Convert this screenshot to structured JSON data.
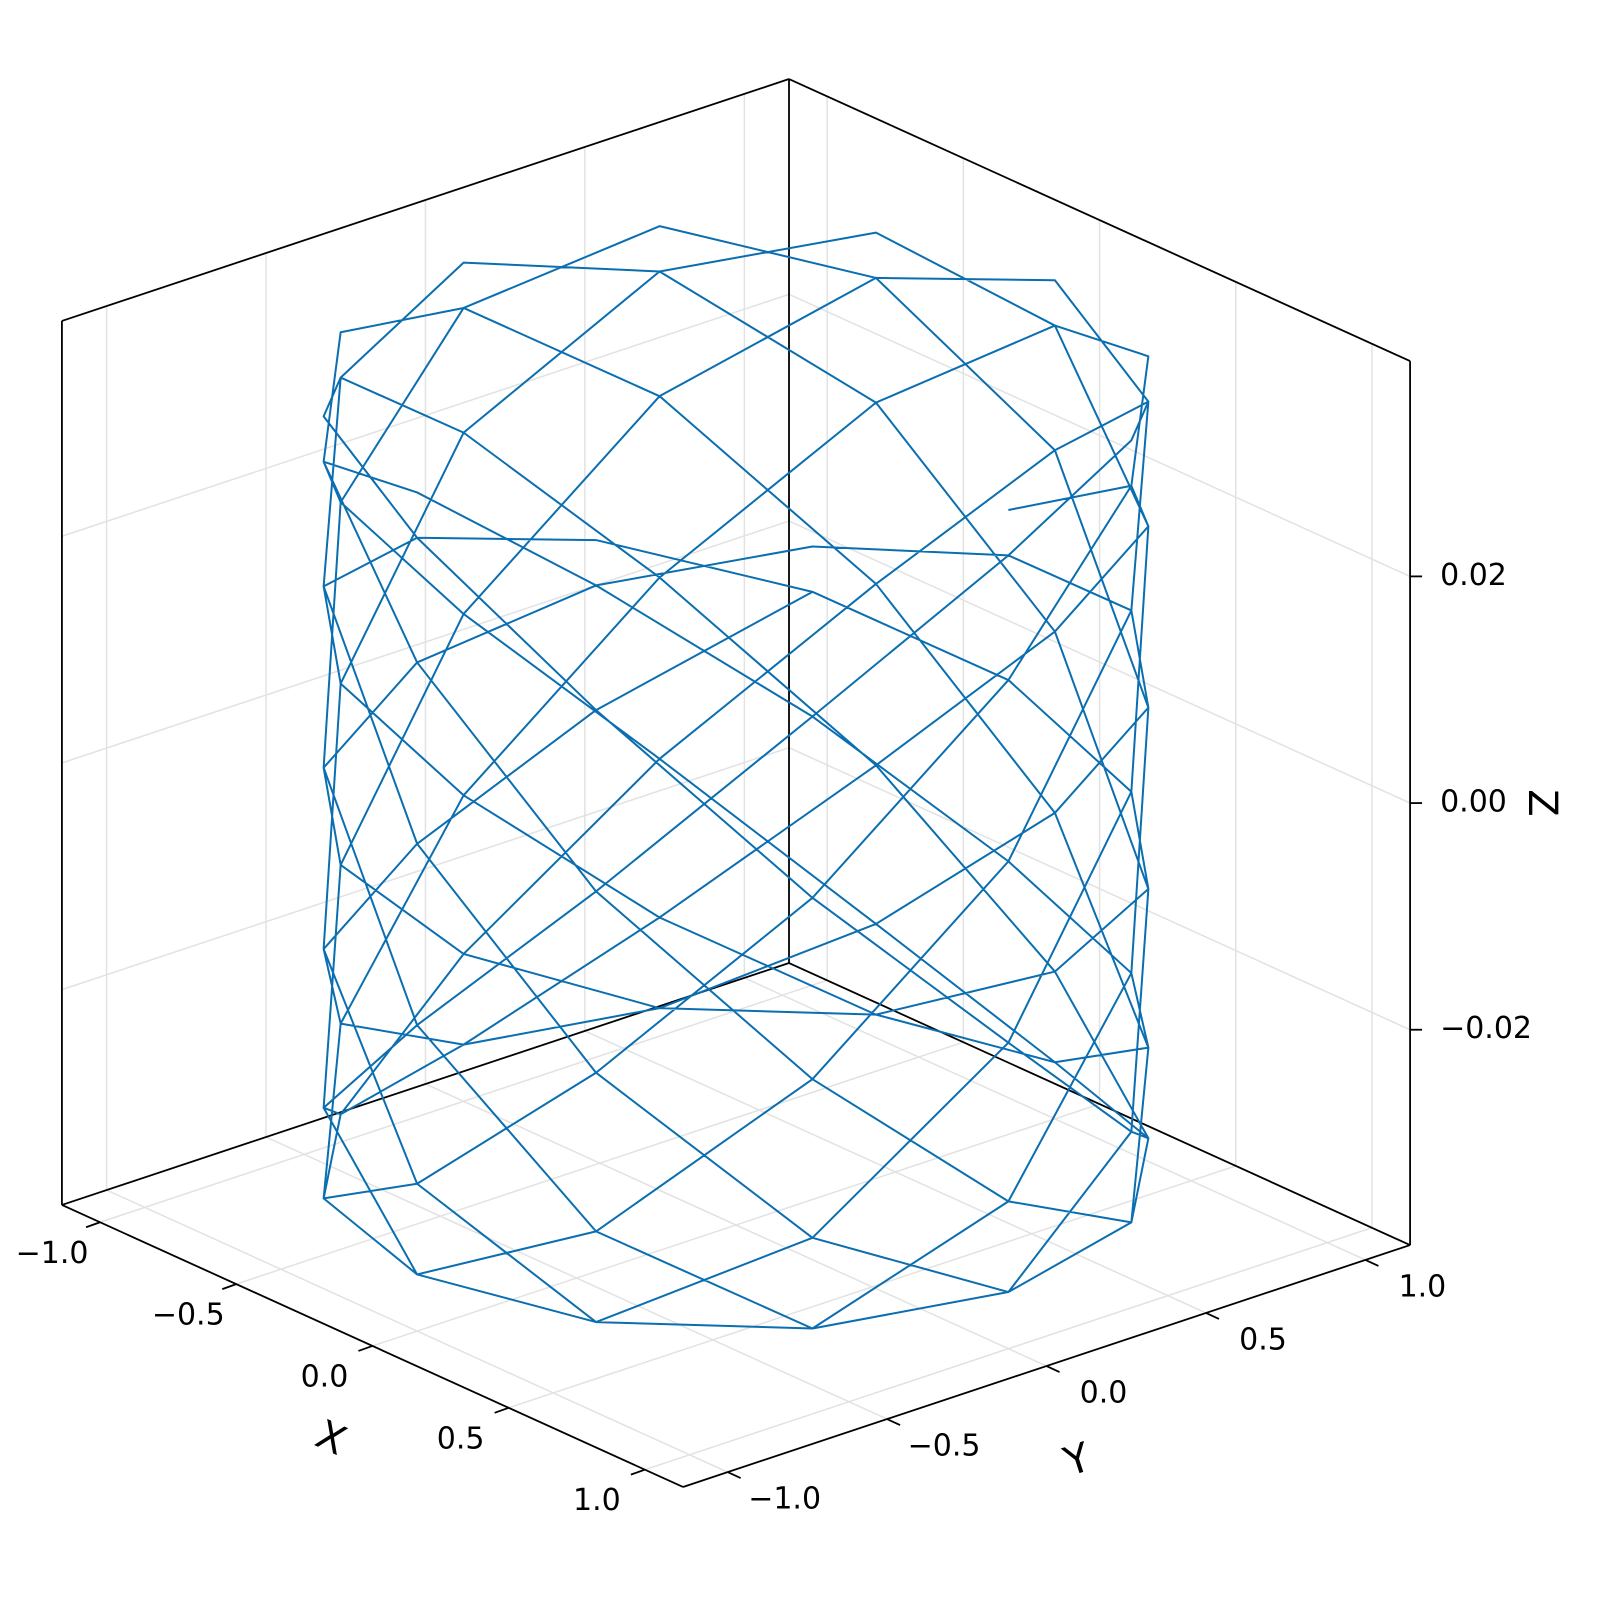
{
  "chart_data": {
    "type": "line3d",
    "xlabel": "X",
    "ylabel": "Y",
    "zlabel": "Z",
    "xlim": [
      -1.14,
      1.14
    ],
    "ylim": [
      -1.14,
      1.14
    ],
    "zlim": [
      -0.039,
      0.039
    ],
    "xticks": [
      {
        "value": -1.0,
        "label": "−1.0"
      },
      {
        "value": -0.5,
        "label": "−0.5"
      },
      {
        "value": 0,
        "label": "0.0"
      },
      {
        "value": 0.5,
        "label": "0.5"
      },
      {
        "value": 1.0,
        "label": "1.0"
      }
    ],
    "yticks": [
      {
        "value": -1.0,
        "label": "−1.0"
      },
      {
        "value": -0.5,
        "label": "−0.5"
      },
      {
        "value": 0,
        "label": "0.0"
      },
      {
        "value": 0.5,
        "label": "0.5"
      },
      {
        "value": 1.0,
        "label": "1.0"
      }
    ],
    "zticks": [
      {
        "value": -0.02,
        "label": "−0.02"
      },
      {
        "value": 0,
        "label": "0.00"
      },
      {
        "value": 0.02,
        "label": "0.02"
      }
    ],
    "grid": true,
    "series": [
      {
        "color": "#0a6eb0",
        "x": [
          1,
          0.866,
          0.5,
          0,
          -0.5,
          -0.866,
          -1,
          -0.866,
          -0.5,
          0,
          0.5,
          0.866,
          1,
          0.866,
          0.5,
          0,
          -0.5,
          -0.866,
          -1,
          -0.866,
          -0.5,
          0,
          0.5,
          0.866,
          1,
          0.866,
          0.5,
          0,
          -0.5,
          -0.866,
          -1,
          -0.866,
          -0.5,
          0,
          0.5,
          0.866,
          1,
          0.866,
          0.5,
          0,
          -0.5,
          -0.866,
          -1,
          -0.866,
          -0.5,
          0,
          0.5,
          0.866,
          1,
          0.866,
          0.5,
          0,
          -0.5,
          -0.866,
          -1,
          -0.866,
          -0.5,
          0,
          0.5,
          0.866,
          1,
          0.866,
          0.5,
          0,
          -0.5,
          -0.866,
          -1,
          -0.866,
          -0.5,
          0,
          0.5,
          0.866,
          1,
          0.866,
          0.5,
          0,
          -0.5,
          -0.866,
          -1,
          -0.866,
          -0.5,
          0,
          0.5,
          0.866,
          1,
          0.866,
          0.5,
          0,
          -0.5,
          -0.866,
          -1,
          -0.866,
          -0.5,
          0,
          0.5,
          0.866,
          1,
          0.866,
          0.5,
          0,
          -0.5,
          -0.866,
          -1,
          -0.866,
          -0.5,
          0,
          0.5,
          0.866,
          1,
          0.866,
          0.5,
          0,
          -0.5,
          -0.866,
          -1,
          -0.866,
          -0.5,
          0,
          0.5,
          0.866,
          1,
          0.866,
          0.5,
          0,
          -0.5,
          -0.866,
          -1,
          -0.866,
          -0.5,
          0,
          0.5,
          0.866,
          1,
          0.866,
          0.5,
          0,
          -0.5,
          -0.866,
          -1,
          -0.866,
          -0.5,
          0,
          0.5,
          0.866,
          1,
          0.866,
          0.5,
          0,
          -0.5,
          -0.866,
          -1,
          -0.866,
          -0.5,
          0,
          0.5,
          0.866
        ],
        "y": [
          0,
          0.5,
          0.866,
          1,
          0.866,
          0.5,
          0,
          -0.5,
          -0.866,
          -1,
          -0.866,
          -0.5,
          0,
          0.5,
          0.866,
          1,
          0.866,
          0.5,
          0,
          -0.5,
          -0.866,
          -1,
          -0.866,
          -0.5,
          0,
          0.5,
          0.866,
          1,
          0.866,
          0.5,
          0,
          -0.5,
          -0.866,
          -1,
          -0.866,
          -0.5,
          0,
          0.5,
          0.866,
          1,
          0.866,
          0.5,
          0,
          -0.5,
          -0.866,
          -1,
          -0.866,
          -0.5,
          0,
          0.5,
          0.866,
          1,
          0.866,
          0.5,
          0,
          -0.5,
          -0.866,
          -1,
          -0.866,
          -0.5,
          0,
          0.5,
          0.866,
          1,
          0.866,
          0.5,
          0,
          -0.5,
          -0.866,
          -1,
          -0.866,
          -0.5,
          0,
          0.5,
          0.866,
          1,
          0.866,
          0.5,
          0,
          -0.5,
          -0.866,
          -1,
          -0.866,
          -0.5,
          0,
          0.5,
          0.866,
          1,
          0.866,
          0.5,
          0,
          -0.5,
          -0.866,
          -1,
          -0.866,
          -0.5,
          0,
          0.5,
          0.866,
          1,
          0.866,
          0.5,
          0,
          -0.5,
          -0.866,
          -1,
          -0.866,
          -0.5,
          0,
          0.5,
          0.866,
          1,
          0.866,
          0.5,
          0,
          -0.5,
          -0.866,
          -1,
          -0.866,
          -0.5,
          0,
          0.5,
          0.866,
          1,
          0.866,
          0.5,
          0,
          -0.5,
          -0.866,
          -1,
          -0.866,
          -0.5,
          0,
          0.5,
          0.866,
          1,
          0.866,
          0.5,
          0,
          -0.5,
          -0.866,
          -1,
          -0.866,
          -0.5,
          0,
          0.5,
          0.866,
          1,
          0.866,
          0.5,
          0,
          -0.5,
          -0.866,
          -1,
          -0.866,
          -0.5
        ],
        "z": [
          0.035,
          0.031,
          0.02,
          0.004,
          -0.012,
          -0.026,
          -0.034,
          -0.034,
          -0.026,
          -0.012,
          0.004,
          0.02,
          0.031,
          0.035,
          0.031,
          0.02,
          0.004,
          -0.012,
          -0.026,
          -0.034,
          -0.034,
          -0.026,
          -0.012,
          0.004,
          0.02,
          0.031,
          0.035,
          0.031,
          0.02,
          0.004,
          -0.012,
          -0.026,
          -0.034,
          -0.034,
          -0.026,
          -0.012,
          0.004,
          0.02,
          0.031,
          0.035,
          0.031,
          0.02,
          0.004,
          -0.012,
          -0.026,
          -0.034,
          -0.034,
          -0.026,
          -0.012,
          0.004,
          0.02,
          0.031,
          0.035,
          0.031,
          0.02,
          0.004,
          -0.012,
          -0.026,
          -0.034,
          -0.034,
          -0.026,
          -0.012,
          0.004,
          0.02,
          0.031,
          0.035,
          0.031,
          0.02,
          0.004,
          -0.012,
          -0.026,
          -0.034,
          -0.034,
          -0.026,
          -0.012,
          0.004,
          0.02,
          0.031,
          0.035,
          0.031,
          0.02,
          0.004,
          -0.012,
          -0.026,
          -0.034,
          -0.034,
          -0.026,
          -0.012,
          0.004,
          0.02,
          0.031,
          0.035,
          0.031,
          0.02,
          0.004,
          -0.012,
          -0.026,
          -0.034,
          -0.034,
          -0.026,
          -0.012,
          0.004,
          0.02,
          0.031,
          0.035,
          0.031,
          0.02,
          0.004,
          -0.012,
          -0.026,
          -0.034,
          -0.034,
          -0.026,
          -0.012,
          0.004,
          0.02,
          0.031,
          0.035,
          0.031,
          0.02,
          0.004,
          -0.012,
          -0.026,
          -0.034,
          -0.034,
          -0.026,
          -0.012,
          0.004,
          0.02,
          0.031,
          0.035,
          0.031,
          0.02,
          0.004,
          -0.012,
          -0.026,
          -0.034,
          -0.034,
          -0.026,
          -0.012,
          0.004,
          0.02,
          0.031,
          0.035,
          0.031,
          0.02,
          0.004,
          -0.012,
          -0.026,
          -0.034,
          -0.034,
          -0.026,
          -0.012,
          0.004,
          0.02,
          0.031
        ]
      }
    ]
  }
}
